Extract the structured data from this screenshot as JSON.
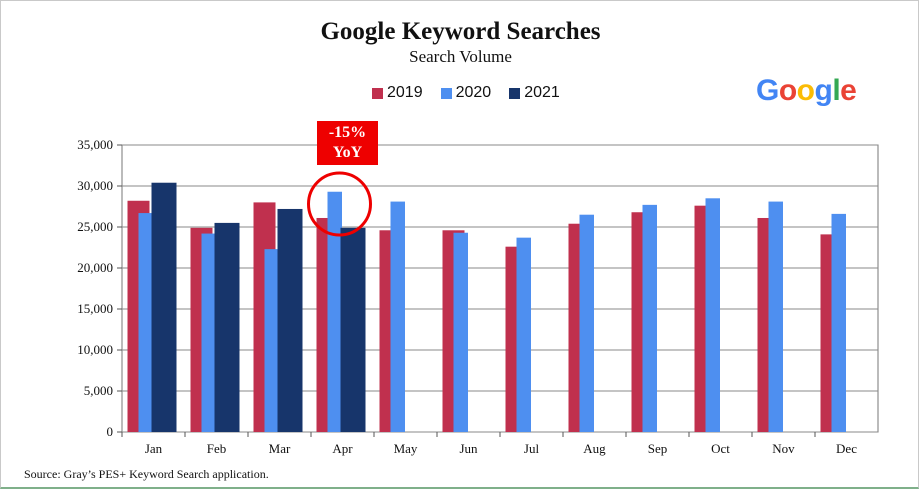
{
  "chart_data": {
    "type": "bar",
    "title": "Google Keyword Searches",
    "subtitle": "Search Volume",
    "categories": [
      "Jan",
      "Feb",
      "Mar",
      "Apr",
      "May",
      "Jun",
      "Jul",
      "Aug",
      "Sep",
      "Oct",
      "Nov",
      "Dec"
    ],
    "series": [
      {
        "name": "2019",
        "color": "#c0304e",
        "values": [
          28200,
          24900,
          28000,
          26100,
          24600,
          24600,
          22600,
          25400,
          26800,
          27600,
          26100,
          24100
        ]
      },
      {
        "name": "2020",
        "color": "#4e8ff0",
        "values": [
          26700,
          24200,
          22300,
          29300,
          28100,
          24300,
          23700,
          26500,
          27700,
          28500,
          28100,
          26600
        ]
      },
      {
        "name": "2021",
        "color": "#17356b",
        "values": [
          30400,
          25500,
          27200,
          24900,
          null,
          null,
          null,
          null,
          null,
          null,
          null,
          null
        ]
      }
    ],
    "yticks": [
      "0",
      "5,000",
      "10,000",
      "15,000",
      "20,000",
      "25,000",
      "30,000",
      "35,000"
    ],
    "ylim": [
      0,
      35000
    ],
    "xlabel": "",
    "ylabel": "",
    "grid": true,
    "legend": "top-center",
    "annotation": {
      "line1": "-15%",
      "line2": "YoY",
      "color": "#ee0000",
      "target": "Apr"
    }
  },
  "logo": {
    "letters": [
      "G",
      "o",
      "o",
      "g",
      "l",
      "e"
    ],
    "colors": [
      "#4285f4",
      "#ea4335",
      "#fbbc05",
      "#4285f4",
      "#34a853",
      "#ea4335"
    ]
  },
  "source": "Source:  Gray’s PES+ Keyword Search application."
}
